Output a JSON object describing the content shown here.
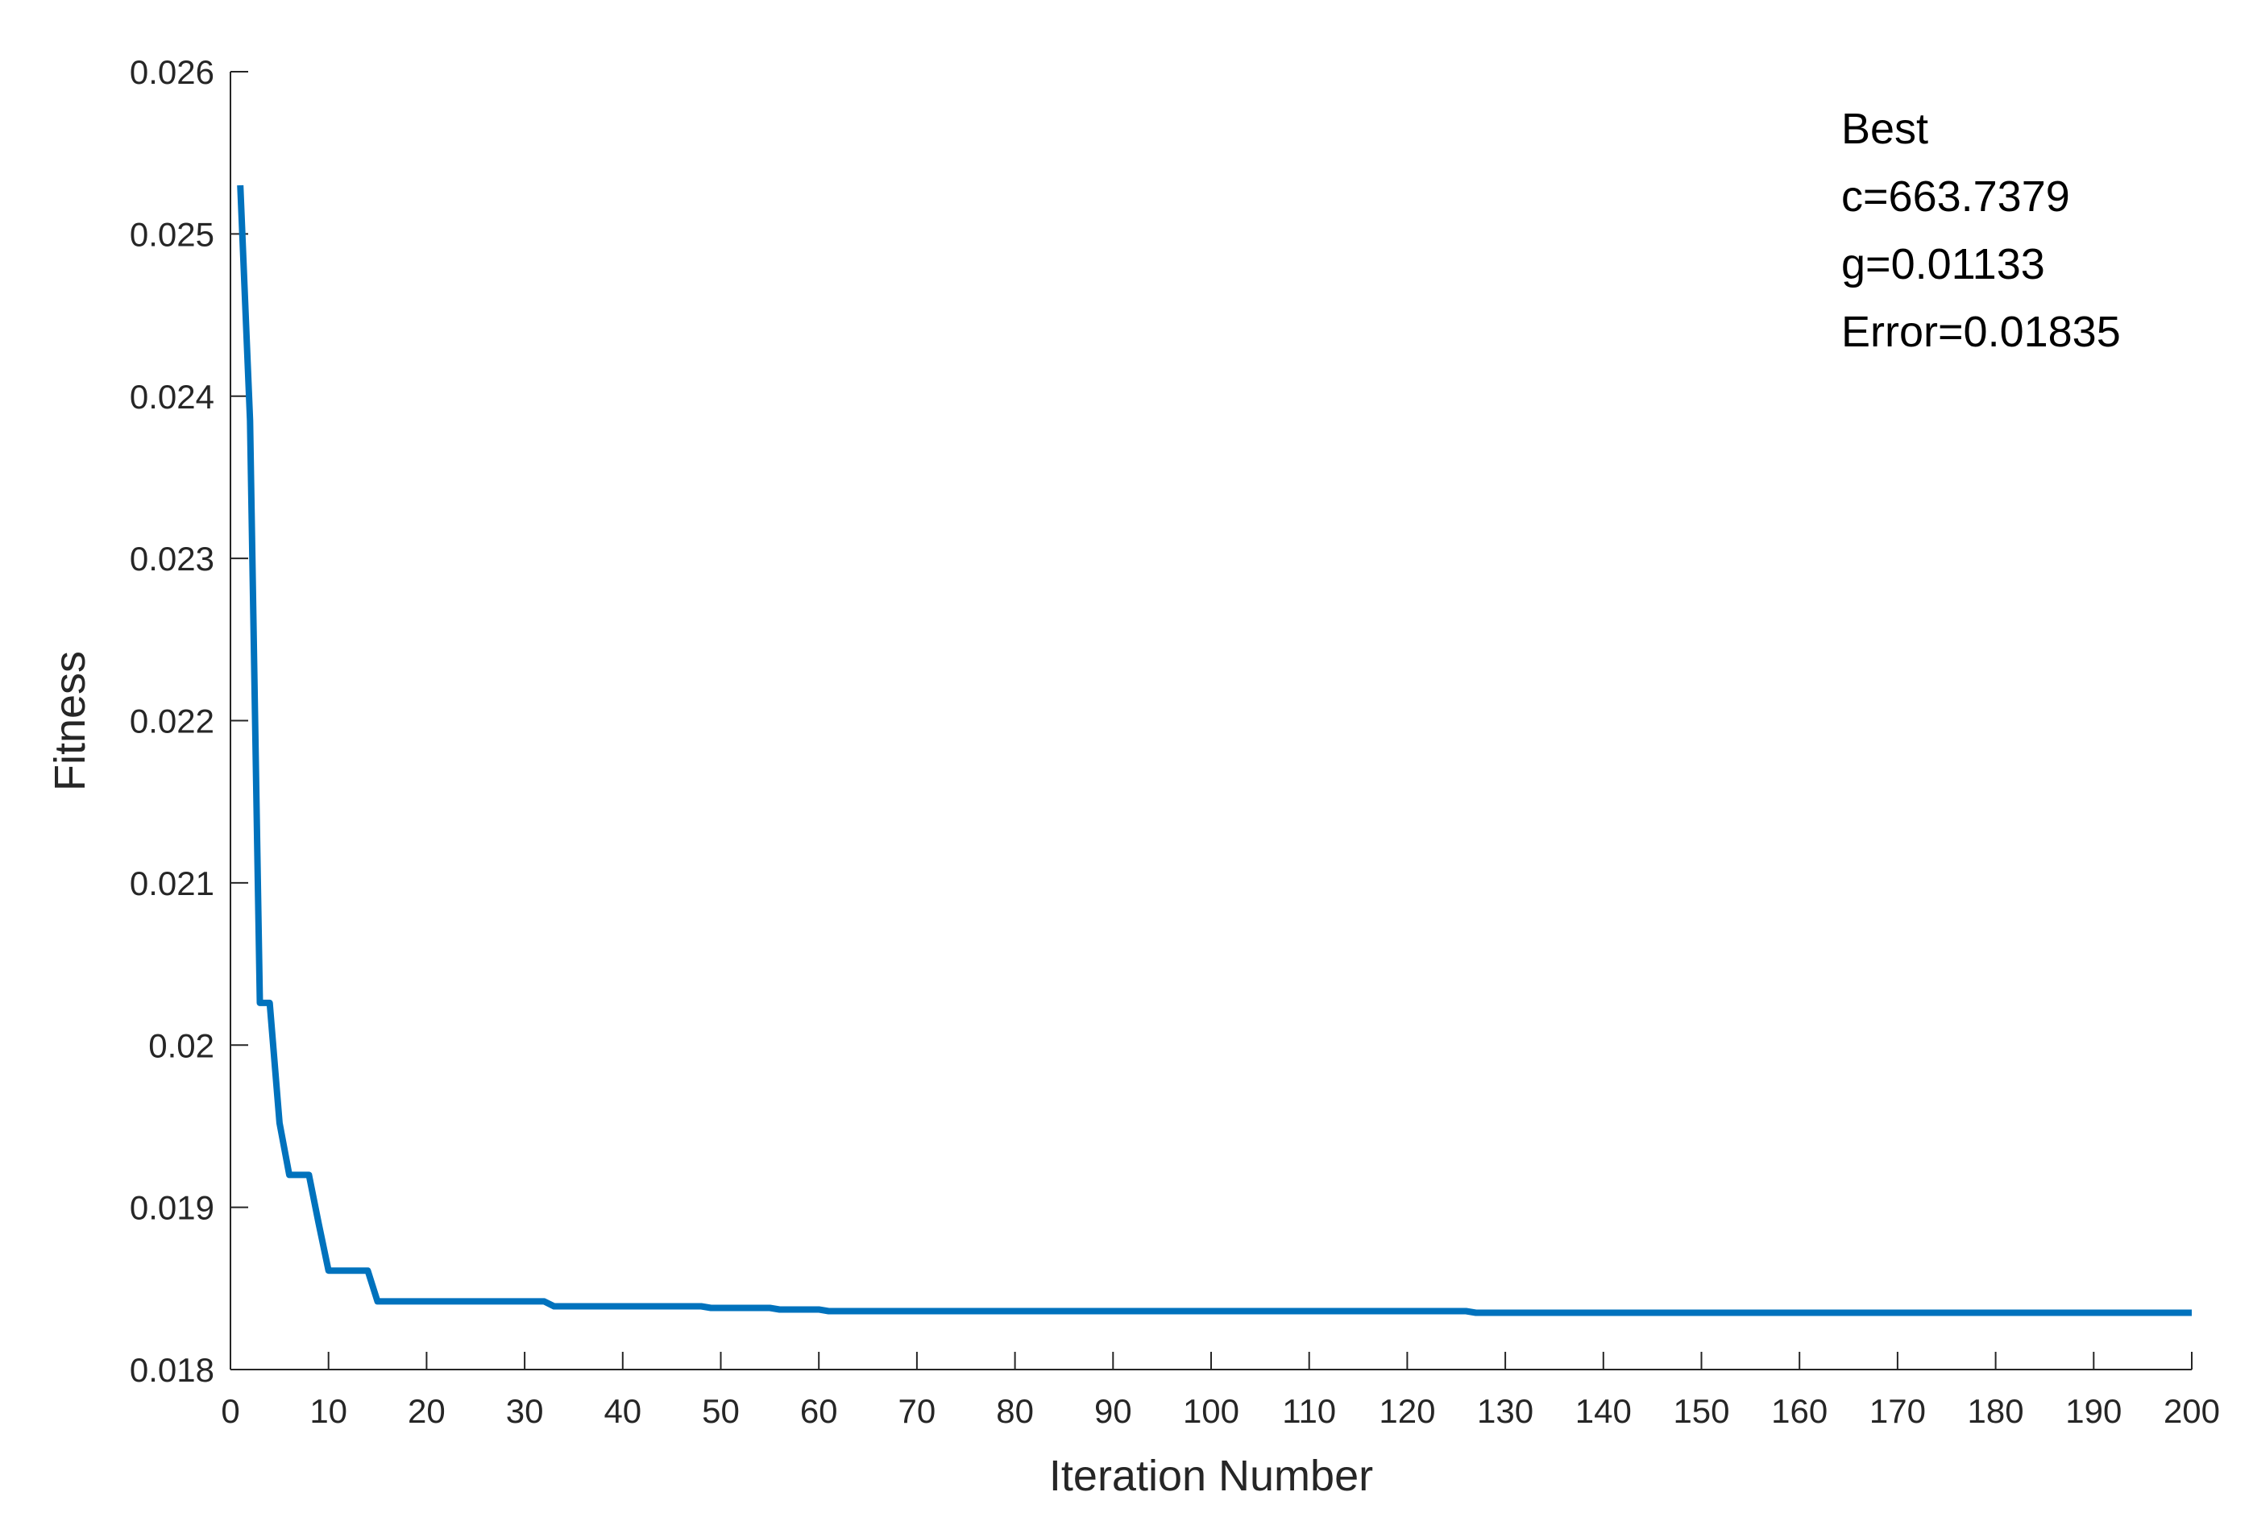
{
  "chart_data": {
    "type": "line",
    "xlabel": "Iteration Number",
    "ylabel": "Fitness",
    "xlim": [
      0,
      200
    ],
    "ylim": [
      0.018,
      0.026
    ],
    "xticks": [
      0,
      10,
      20,
      30,
      40,
      50,
      60,
      70,
      80,
      90,
      100,
      110,
      120,
      130,
      140,
      150,
      160,
      170,
      180,
      190,
      200
    ],
    "xtick_labels": [
      "0",
      "10",
      "20",
      "30",
      "40",
      "50",
      "60",
      "70",
      "80",
      "90",
      "100",
      "110",
      "120",
      "130",
      "140",
      "150",
      "160",
      "170",
      "180",
      "190",
      "200"
    ],
    "yticks": [
      0.018,
      0.019,
      0.02,
      0.021,
      0.022,
      0.023,
      0.024,
      0.025,
      0.026
    ],
    "ytick_labels": [
      "0.018",
      "0.019",
      "0.02",
      "0.021",
      "0.022",
      "0.023",
      "0.024",
      "0.025",
      "0.026"
    ],
    "grid": false,
    "line_color": "#0072BD",
    "annotation": [
      "Best",
      "c=663.7379",
      "g=0.01133",
      "Error=0.01835"
    ],
    "series": [
      {
        "x": [
          1,
          2,
          3,
          4,
          5,
          6,
          7,
          8,
          9,
          10,
          11,
          12,
          13,
          14,
          15,
          20,
          25,
          30,
          32,
          33,
          40,
          48,
          49,
          50,
          55,
          56,
          60,
          61,
          70,
          72,
          73,
          80,
          90,
          100,
          110,
          120,
          126,
          127,
          130,
          140,
          150,
          160,
          170,
          180,
          190,
          200
        ],
        "y": [
          0.0253,
          0.02385,
          0.02026,
          0.02026,
          0.01952,
          0.0192,
          0.0192,
          0.0192,
          0.0189,
          0.01861,
          0.01861,
          0.01861,
          0.01861,
          0.01861,
          0.01842,
          0.01842,
          0.01842,
          0.01842,
          0.01842,
          0.01839,
          0.01839,
          0.01839,
          0.01838,
          0.01838,
          0.01838,
          0.01837,
          0.01837,
          0.01836,
          0.01836,
          0.01836,
          0.01836,
          0.01836,
          0.01836,
          0.01836,
          0.01836,
          0.01836,
          0.01836,
          0.01835,
          0.01835,
          0.01835,
          0.01835,
          0.01835,
          0.01835,
          0.01835,
          0.01835,
          0.01835
        ]
      }
    ]
  }
}
